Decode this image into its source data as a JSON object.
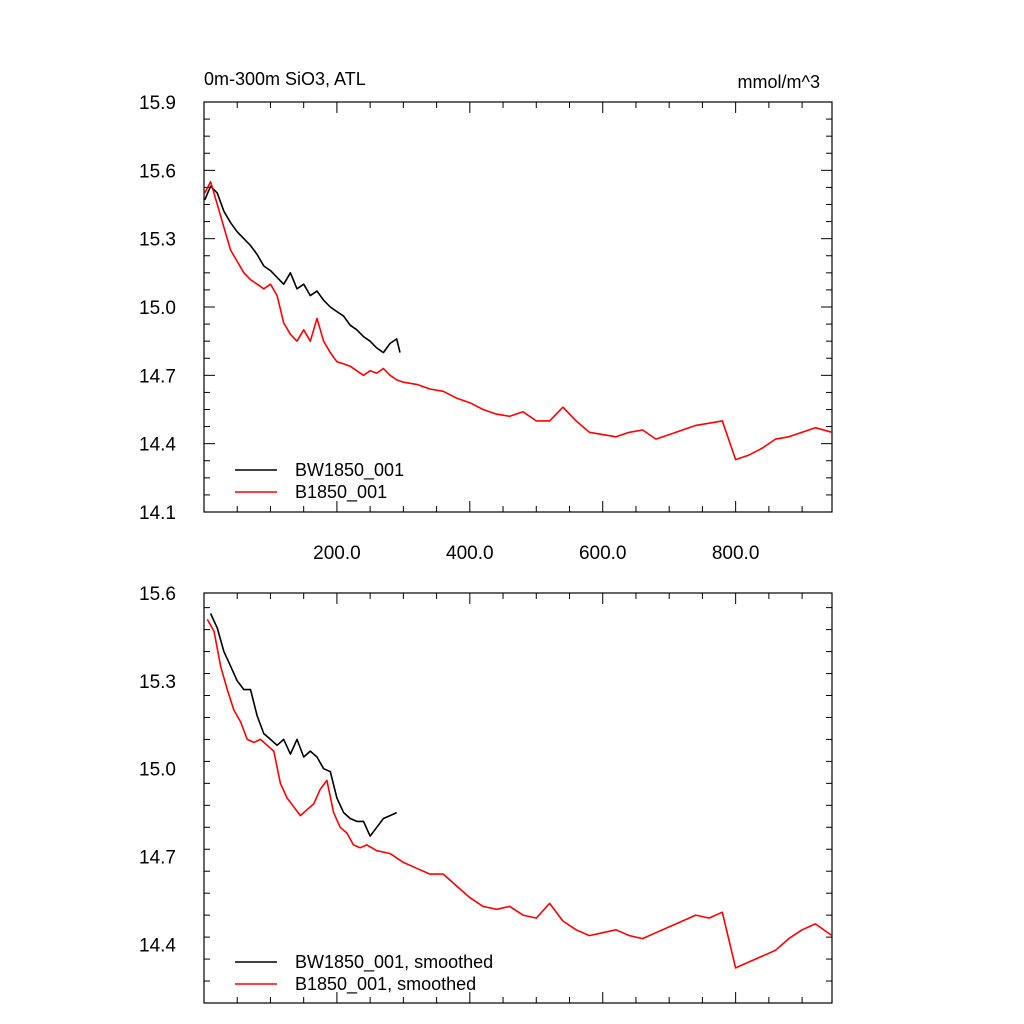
{
  "chart_data": [
    {
      "type": "line",
      "title": "0m-300m SiO3, ATL",
      "units": "mmol/m^3",
      "xlim": [
        0,
        945
      ],
      "ylim": [
        14.1,
        15.9
      ],
      "xticks": [
        200,
        400,
        600,
        800
      ],
      "xtick_labels": [
        "200.0",
        "400.0",
        "600.0",
        "800.0"
      ],
      "yticks": [
        14.1,
        14.4,
        14.7,
        15.0,
        15.3,
        15.6,
        15.9
      ],
      "ytick_labels": [
        "14.1",
        "14.4",
        "14.7",
        "15.0",
        "15.3",
        "15.6",
        "15.9"
      ],
      "legend_position": "bottom-left",
      "series": [
        {
          "name": "BW1850_001",
          "color": "#000000",
          "x": [
            1,
            10,
            20,
            30,
            40,
            50,
            60,
            70,
            80,
            90,
            100,
            110,
            120,
            130,
            140,
            150,
            160,
            170,
            180,
            190,
            200,
            210,
            220,
            230,
            240,
            250,
            260,
            270,
            280,
            290,
            295
          ],
          "y": [
            15.47,
            15.53,
            15.5,
            15.42,
            15.37,
            15.33,
            15.3,
            15.27,
            15.23,
            15.18,
            15.16,
            15.13,
            15.1,
            15.15,
            15.08,
            15.1,
            15.05,
            15.07,
            15.03,
            15.0,
            14.98,
            14.96,
            14.92,
            14.9,
            14.87,
            14.85,
            14.82,
            14.8,
            14.84,
            14.86,
            14.8
          ]
        },
        {
          "name": "B1850_001",
          "color": "#ff0000",
          "x": [
            1,
            10,
            20,
            30,
            40,
            50,
            60,
            70,
            80,
            90,
            100,
            110,
            120,
            130,
            140,
            150,
            160,
            170,
            180,
            190,
            200,
            210,
            220,
            230,
            240,
            250,
            260,
            270,
            280,
            290,
            300,
            320,
            340,
            360,
            380,
            400,
            420,
            440,
            460,
            480,
            500,
            520,
            540,
            560,
            580,
            600,
            620,
            640,
            660,
            680,
            700,
            720,
            740,
            760,
            780,
            800,
            820,
            840,
            860,
            880,
            900,
            920,
            945
          ],
          "y": [
            15.5,
            15.55,
            15.45,
            15.35,
            15.25,
            15.2,
            15.15,
            15.12,
            15.1,
            15.08,
            15.1,
            15.05,
            14.93,
            14.88,
            14.85,
            14.9,
            14.85,
            14.95,
            14.85,
            14.8,
            14.76,
            14.75,
            14.74,
            14.72,
            14.7,
            14.72,
            14.71,
            14.73,
            14.7,
            14.68,
            14.67,
            14.66,
            14.64,
            14.63,
            14.6,
            14.58,
            14.55,
            14.53,
            14.52,
            14.54,
            14.5,
            14.5,
            14.56,
            14.5,
            14.45,
            14.44,
            14.43,
            14.45,
            14.46,
            14.42,
            14.44,
            14.46,
            14.48,
            14.49,
            14.5,
            14.33,
            14.35,
            14.38,
            14.42,
            14.43,
            14.45,
            14.47,
            14.45
          ]
        }
      ]
    },
    {
      "type": "line",
      "title": "",
      "xlim": [
        0,
        945
      ],
      "ylim": [
        14.2,
        15.6
      ],
      "xticks": [
        200,
        400,
        600,
        800
      ],
      "xtick_labels": [],
      "yticks": [
        14.4,
        14.7,
        15.0,
        15.3,
        15.6
      ],
      "ytick_labels": [
        "14.4",
        "14.7",
        "15.0",
        "15.3",
        "15.6"
      ],
      "legend_position": "bottom-left",
      "series": [
        {
          "name": "BW1850_001, smoothed",
          "color": "#000000",
          "x": [
            10,
            20,
            30,
            40,
            50,
            60,
            70,
            80,
            90,
            100,
            110,
            120,
            130,
            140,
            150,
            160,
            170,
            180,
            190,
            200,
            210,
            220,
            230,
            240,
            250,
            260,
            270,
            280,
            290
          ],
          "y": [
            15.53,
            15.48,
            15.4,
            15.35,
            15.3,
            15.27,
            15.27,
            15.18,
            15.12,
            15.1,
            15.08,
            15.1,
            15.05,
            15.1,
            15.04,
            15.06,
            15.04,
            15.0,
            14.99,
            14.9,
            14.85,
            14.83,
            14.82,
            14.82,
            14.77,
            14.8,
            14.83,
            14.84,
            14.85
          ]
        },
        {
          "name": "B1850_001, smoothed",
          "color": "#ff0000",
          "x": [
            5,
            15,
            25,
            35,
            45,
            55,
            65,
            75,
            85,
            95,
            105,
            115,
            125,
            135,
            145,
            155,
            165,
            175,
            185,
            195,
            205,
            215,
            225,
            235,
            245,
            260,
            280,
            300,
            320,
            340,
            360,
            380,
            400,
            420,
            440,
            460,
            480,
            500,
            520,
            540,
            560,
            580,
            600,
            620,
            640,
            660,
            680,
            700,
            720,
            740,
            760,
            780,
            800,
            820,
            840,
            860,
            880,
            900,
            920,
            945
          ],
          "y": [
            15.51,
            15.47,
            15.35,
            15.27,
            15.2,
            15.16,
            15.1,
            15.09,
            15.1,
            15.08,
            15.06,
            14.95,
            14.9,
            14.87,
            14.84,
            14.86,
            14.88,
            14.93,
            14.96,
            14.85,
            14.8,
            14.78,
            14.74,
            14.73,
            14.74,
            14.72,
            14.71,
            14.68,
            14.66,
            14.64,
            14.64,
            14.6,
            14.56,
            14.53,
            14.52,
            14.53,
            14.5,
            14.49,
            14.54,
            14.48,
            14.45,
            14.43,
            14.44,
            14.45,
            14.43,
            14.42,
            14.44,
            14.46,
            14.48,
            14.5,
            14.49,
            14.51,
            14.32,
            14.34,
            14.36,
            14.38,
            14.42,
            14.45,
            14.47,
            14.43
          ]
        }
      ]
    }
  ]
}
